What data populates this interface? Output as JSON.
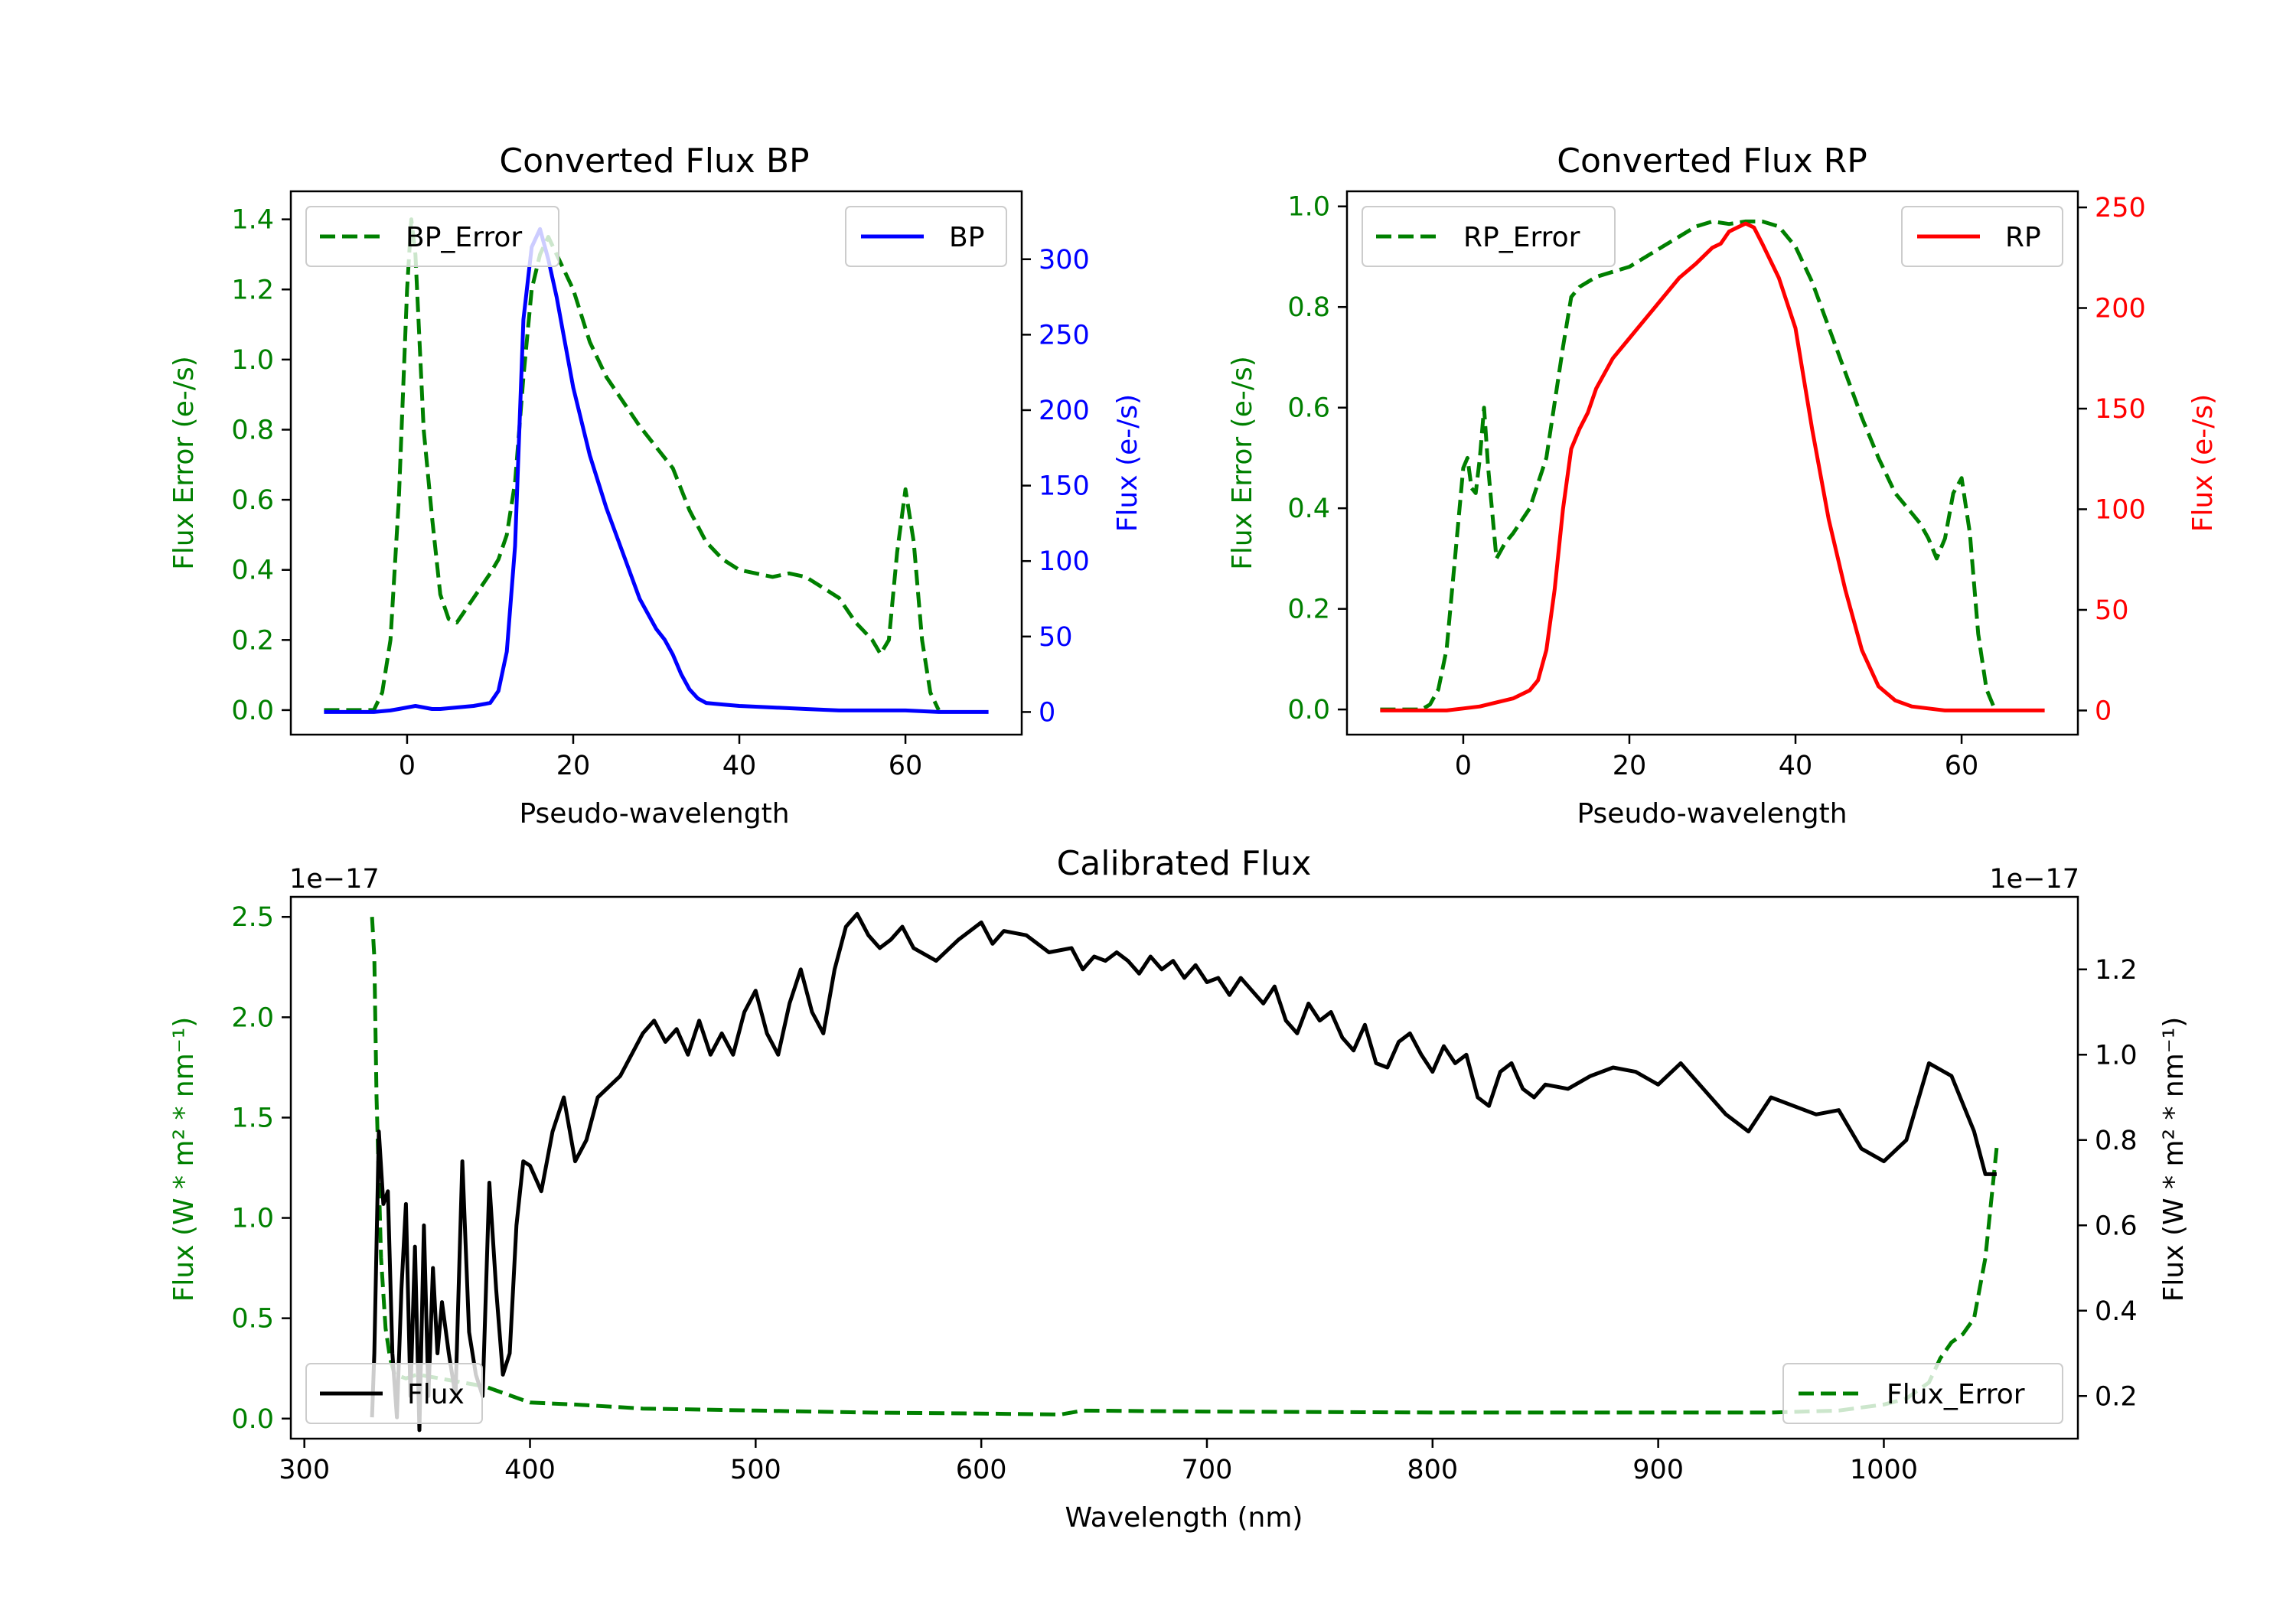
{
  "colors": {
    "green": "#008000",
    "blue": "#0000ff",
    "red": "#ff0000",
    "black": "#000000"
  },
  "chart_data": [
    {
      "type": "line",
      "title": "Converted Flux BP",
      "xlabel": "Pseudo-wavelength",
      "ylabel_left": "Flux Error (e-/s)",
      "ylabel_right": "Flux (e-/s)",
      "xlim": [
        -14,
        74
      ],
      "ylim_left": [
        -0.07,
        1.48
      ],
      "ylim_right": [
        -15,
        345
      ],
      "x_ticks": [
        0,
        20,
        40,
        60
      ],
      "x_tick_labels": [
        "0",
        "20",
        "40",
        "60"
      ],
      "y_left_ticks": [
        0.0,
        0.2,
        0.4,
        0.6,
        0.8,
        1.0,
        1.2,
        1.4
      ],
      "y_left_tick_labels": [
        "0.0",
        "0.2",
        "0.4",
        "0.6",
        "0.8",
        "1.0",
        "1.2",
        "1.4"
      ],
      "y_right_ticks": [
        0,
        50,
        100,
        150,
        200,
        250,
        300
      ],
      "y_right_tick_labels": [
        "0",
        "50",
        "100",
        "150",
        "200",
        "250",
        "300"
      ],
      "legend_left": "BP_Error",
      "legend_right": "BP",
      "series": [
        {
          "name": "BP_Error",
          "axis": "left",
          "color": "green",
          "dashed": true,
          "x": [
            -10,
            -4,
            -3,
            -2,
            -1,
            0,
            0.5,
            1,
            2,
            3,
            4,
            5,
            6,
            8,
            10,
            11,
            12,
            13,
            14,
            15,
            16,
            17,
            18,
            20,
            22,
            24,
            26,
            28,
            30,
            32,
            34,
            36,
            38,
            40,
            42,
            44,
            46,
            48,
            50,
            52,
            54,
            56,
            57,
            58,
            59,
            60,
            61,
            62,
            63,
            64
          ],
          "y": [
            0.0,
            0.0,
            0.05,
            0.2,
            0.6,
            1.2,
            1.4,
            1.3,
            0.8,
            0.55,
            0.33,
            0.26,
            0.25,
            0.32,
            0.39,
            0.43,
            0.5,
            0.65,
            0.95,
            1.2,
            1.3,
            1.35,
            1.3,
            1.2,
            1.05,
            0.95,
            0.88,
            0.81,
            0.75,
            0.69,
            0.57,
            0.48,
            0.43,
            0.4,
            0.39,
            0.38,
            0.39,
            0.38,
            0.35,
            0.32,
            0.25,
            0.2,
            0.16,
            0.2,
            0.45,
            0.63,
            0.48,
            0.2,
            0.05,
            0.0
          ]
        },
        {
          "name": "BP",
          "axis": "right",
          "color": "blue",
          "dashed": false,
          "x": [
            -10,
            -4,
            -2,
            -1,
            0,
            1,
            2,
            3,
            4,
            6,
            8,
            10,
            11,
            12,
            13,
            14,
            15,
            16,
            17,
            18,
            19,
            20,
            22,
            24,
            26,
            28,
            30,
            31,
            32,
            33,
            34,
            35,
            36,
            38,
            40,
            44,
            48,
            52,
            56,
            60,
            64,
            70
          ],
          "y": [
            0,
            0,
            1,
            2,
            3,
            4,
            3,
            2,
            2,
            3,
            4,
            6,
            14,
            40,
            110,
            260,
            308,
            320,
            300,
            275,
            245,
            215,
            170,
            135,
            105,
            75,
            55,
            48,
            38,
            25,
            15,
            9,
            6,
            5,
            4,
            3,
            2,
            1,
            1,
            1,
            0,
            0
          ]
        }
      ]
    },
    {
      "type": "line",
      "title": "Converted Flux RP",
      "xlabel": "Pseudo-wavelength",
      "ylabel_left": "Flux Error (e-/s)",
      "ylabel_right": "Flux (e-/s)",
      "xlim": [
        -14,
        74
      ],
      "ylim_left": [
        -0.05,
        1.03
      ],
      "ylim_right": [
        -12,
        258
      ],
      "x_ticks": [
        0,
        20,
        40,
        60
      ],
      "x_tick_labels": [
        "0",
        "20",
        "40",
        "60"
      ],
      "y_left_ticks": [
        0.0,
        0.2,
        0.4,
        0.6,
        0.8,
        1.0
      ],
      "y_left_tick_labels": [
        "0.0",
        "0.2",
        "0.4",
        "0.6",
        "0.8",
        "1.0"
      ],
      "y_right_ticks": [
        0,
        50,
        100,
        150,
        200,
        250
      ],
      "y_right_tick_labels": [
        "0",
        "50",
        "100",
        "150",
        "200",
        "250"
      ],
      "legend_left": "RP_Error",
      "legend_right": "RP",
      "series": [
        {
          "name": "RP_Error",
          "axis": "left",
          "color": "green",
          "dashed": true,
          "x": [
            -10,
            -5,
            -4,
            -3,
            -2,
            -1,
            0,
            0.5,
            1,
            1.5,
            2,
            2.5,
            3,
            4,
            5,
            6,
            8,
            10,
            12,
            13,
            14,
            16,
            18,
            20,
            22,
            24,
            26,
            28,
            30,
            32,
            34,
            36,
            38,
            40,
            42,
            44,
            46,
            48,
            50,
            52,
            54,
            55,
            56,
            57,
            58,
            59,
            60,
            61,
            62,
            63,
            64
          ],
          "y": [
            0.0,
            0.0,
            0.01,
            0.04,
            0.12,
            0.3,
            0.48,
            0.5,
            0.44,
            0.43,
            0.5,
            0.6,
            0.48,
            0.3,
            0.33,
            0.35,
            0.4,
            0.5,
            0.72,
            0.82,
            0.84,
            0.86,
            0.87,
            0.88,
            0.9,
            0.92,
            0.94,
            0.96,
            0.97,
            0.965,
            0.97,
            0.97,
            0.96,
            0.92,
            0.85,
            0.76,
            0.67,
            0.58,
            0.5,
            0.43,
            0.39,
            0.37,
            0.34,
            0.3,
            0.34,
            0.43,
            0.46,
            0.35,
            0.15,
            0.04,
            0.0
          ]
        },
        {
          "name": "RP",
          "axis": "right",
          "color": "red",
          "dashed": false,
          "x": [
            -10,
            -4,
            -2,
            0,
            2,
            4,
            6,
            8,
            9,
            10,
            11,
            12,
            13,
            14,
            15,
            16,
            18,
            20,
            22,
            24,
            26,
            28,
            30,
            31,
            32,
            33,
            34,
            35,
            36,
            38,
            40,
            42,
            44,
            46,
            48,
            50,
            52,
            54,
            56,
            58,
            60,
            64,
            70
          ],
          "y": [
            0,
            0,
            0,
            1,
            2,
            4,
            6,
            10,
            15,
            30,
            60,
            100,
            130,
            140,
            148,
            160,
            175,
            185,
            195,
            205,
            215,
            222,
            230,
            232,
            238,
            240,
            242,
            240,
            232,
            215,
            190,
            140,
            95,
            60,
            30,
            12,
            5,
            2,
            1,
            0,
            0,
            0,
            0
          ]
        }
      ]
    },
    {
      "type": "line",
      "title": "Calibrated Flux",
      "xlabel": "Wavelength (nm)",
      "ylabel_left": "Flux (W * m² * nm⁻¹)",
      "ylabel_right": "Flux (W * m² * nm⁻¹)",
      "offset_left": "1e−17",
      "offset_right": "1e−17",
      "xlim": [
        294,
        1086
      ],
      "ylim_left": [
        -0.1,
        2.6
      ],
      "ylim_right": [
        0.1,
        1.37
      ],
      "x_ticks": [
        300,
        400,
        500,
        600,
        700,
        800,
        900,
        1000
      ],
      "x_tick_labels": [
        "300",
        "400",
        "500",
        "600",
        "700",
        "800",
        "900",
        "1000"
      ],
      "y_left_ticks": [
        0.0,
        0.5,
        1.0,
        1.5,
        2.0,
        2.5
      ],
      "y_left_tick_labels": [
        "0.0",
        "0.5",
        "1.0",
        "1.5",
        "2.0",
        "2.5"
      ],
      "y_right_ticks": [
        0.2,
        0.4,
        0.6,
        0.8,
        1.0,
        1.2
      ],
      "y_right_tick_labels": [
        "0.2",
        "0.4",
        "0.6",
        "0.8",
        "1.0",
        "1.2"
      ],
      "legend_left": "Flux",
      "legend_right": "Flux_Error",
      "series": [
        {
          "name": "Flux_Error",
          "axis": "left",
          "color": "green",
          "dashed": true,
          "x": [
            330,
            331,
            332,
            334,
            336,
            338,
            340,
            345,
            350,
            360,
            370,
            380,
            390,
            400,
            420,
            450,
            500,
            550,
            600,
            635,
            640,
            645,
            700,
            800,
            900,
            950,
            980,
            1000,
            1010,
            1020,
            1025,
            1030,
            1035,
            1040,
            1045,
            1050
          ],
          "y": [
            2.5,
            2.3,
            1.6,
            0.8,
            0.45,
            0.3,
            0.22,
            0.2,
            0.22,
            0.2,
            0.18,
            0.16,
            0.12,
            0.08,
            0.07,
            0.05,
            0.04,
            0.03,
            0.025,
            0.02,
            0.03,
            0.04,
            0.035,
            0.03,
            0.03,
            0.03,
            0.04,
            0.07,
            0.1,
            0.18,
            0.3,
            0.38,
            0.42,
            0.5,
            0.8,
            1.35
          ]
        },
        {
          "name": "Flux",
          "axis": "right",
          "color": "black",
          "dashed": false,
          "x": [
            330,
            331,
            333,
            335,
            337,
            339,
            341,
            343,
            345,
            347,
            349,
            351,
            353,
            355,
            357,
            359,
            361,
            364,
            367,
            370,
            373,
            376,
            379,
            382,
            385,
            388,
            391,
            394,
            397,
            400,
            405,
            410,
            415,
            420,
            425,
            430,
            440,
            450,
            455,
            460,
            465,
            470,
            475,
            480,
            485,
            490,
            495,
            500,
            505,
            510,
            515,
            520,
            525,
            530,
            535,
            540,
            545,
            550,
            555,
            560,
            565,
            570,
            580,
            590,
            600,
            605,
            610,
            620,
            630,
            640,
            645,
            650,
            655,
            660,
            665,
            670,
            675,
            680,
            685,
            690,
            695,
            700,
            705,
            710,
            715,
            720,
            725,
            730,
            735,
            740,
            745,
            750,
            755,
            760,
            765,
            770,
            775,
            780,
            785,
            790,
            795,
            800,
            805,
            810,
            815,
            820,
            825,
            830,
            835,
            840,
            845,
            850,
            860,
            870,
            880,
            890,
            900,
            910,
            920,
            930,
            940,
            950,
            960,
            970,
            980,
            990,
            1000,
            1010,
            1020,
            1030,
            1040,
            1045,
            1050
          ],
          "y": [
            0.15,
            0.3,
            0.82,
            0.65,
            0.68,
            0.3,
            0.15,
            0.45,
            0.65,
            0.2,
            0.55,
            0.12,
            0.6,
            0.2,
            0.5,
            0.3,
            0.42,
            0.3,
            0.2,
            0.75,
            0.35,
            0.25,
            0.2,
            0.7,
            0.45,
            0.25,
            0.3,
            0.6,
            0.75,
            0.74,
            0.68,
            0.82,
            0.9,
            0.75,
            0.8,
            0.9,
            0.95,
            1.05,
            1.08,
            1.03,
            1.06,
            1.0,
            1.08,
            1.0,
            1.05,
            1.0,
            1.1,
            1.15,
            1.05,
            1.0,
            1.12,
            1.2,
            1.1,
            1.05,
            1.2,
            1.3,
            1.33,
            1.28,
            1.25,
            1.27,
            1.3,
            1.25,
            1.22,
            1.27,
            1.31,
            1.26,
            1.29,
            1.28,
            1.24,
            1.25,
            1.2,
            1.23,
            1.22,
            1.24,
            1.22,
            1.19,
            1.23,
            1.2,
            1.22,
            1.18,
            1.21,
            1.17,
            1.18,
            1.14,
            1.18,
            1.15,
            1.12,
            1.16,
            1.08,
            1.05,
            1.12,
            1.08,
            1.1,
            1.04,
            1.01,
            1.07,
            0.98,
            0.97,
            1.03,
            1.05,
            1.0,
            0.96,
            1.02,
            0.98,
            1.0,
            0.9,
            0.88,
            0.96,
            0.98,
            0.92,
            0.9,
            0.93,
            0.92,
            0.95,
            0.97,
            0.96,
            0.93,
            0.98,
            0.92,
            0.86,
            0.82,
            0.9,
            0.88,
            0.86,
            0.87,
            0.78,
            0.75,
            0.8,
            0.98,
            0.95,
            0.82,
            0.72,
            0.72
          ]
        }
      ]
    }
  ]
}
